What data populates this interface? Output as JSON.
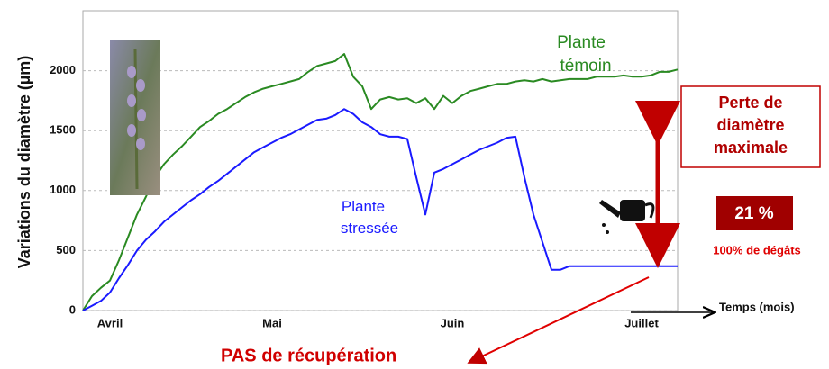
{
  "chart_data": {
    "type": "line",
    "y_label": "Variations du diamètre (µm)",
    "x_label": "Temps (mois)",
    "categories": [
      null,
      null,
      null,
      "Avril",
      null,
      null,
      null,
      null,
      null,
      null,
      null,
      null,
      null,
      null,
      null,
      null,
      null,
      null,
      null,
      null,
      null,
      "Mai",
      null,
      null,
      null,
      null,
      null,
      null,
      null,
      null,
      null,
      null,
      null,
      null,
      null,
      null,
      null,
      null,
      null,
      null,
      null,
      "Juin",
      null,
      null,
      null,
      null,
      null,
      null,
      null,
      null,
      null,
      null,
      null,
      null,
      null,
      null,
      null,
      null,
      null,
      null,
      null,
      null,
      "Juillet",
      null,
      null,
      null,
      null
    ],
    "series": [
      {
        "name": [
          "Plante",
          "témoin"
        ],
        "color": "#2a8a22",
        "values": [
          0,
          120,
          190,
          250,
          420,
          610,
          800,
          950,
          1110,
          1220,
          1300,
          1370,
          1450,
          1530,
          1580,
          1640,
          1680,
          1730,
          1780,
          1820,
          1850,
          1870,
          1890,
          1910,
          1930,
          1990,
          2040,
          2060,
          2080,
          2140,
          1950,
          1870,
          1680,
          1760,
          1780,
          1760,
          1770,
          1730,
          1770,
          1680,
          1790,
          1730,
          1790,
          1830,
          1850,
          1870,
          1890,
          1890,
          1910,
          1920,
          1910,
          1930,
          1910,
          1920,
          1930,
          1930,
          1930,
          1950,
          1950,
          1950,
          1960,
          1950,
          1950,
          1960,
          1990,
          1990,
          2010
        ]
      },
      {
        "name": [
          "Plante",
          "stressée"
        ],
        "color": "#1a1aff",
        "values": [
          0,
          40,
          80,
          150,
          270,
          380,
          500,
          590,
          660,
          740,
          800,
          860,
          920,
          970,
          1030,
          1080,
          1140,
          1200,
          1260,
          1320,
          1360,
          1400,
          1440,
          1470,
          1510,
          1550,
          1590,
          1600,
          1630,
          1680,
          1640,
          1570,
          1530,
          1470,
          1450,
          1450,
          1430,
          1110,
          800,
          1150,
          1180,
          1220,
          1260,
          1300,
          1340,
          1370,
          1400,
          1440,
          1450,
          1110,
          800,
          570,
          340,
          340,
          370,
          370,
          370,
          370,
          370,
          370,
          370,
          370,
          370,
          370,
          370,
          370,
          370
        ]
      }
    ],
    "ylim": [
      0,
      2500
    ],
    "yticks": [
      0,
      500,
      1000,
      1500,
      2000
    ],
    "grid": true,
    "loss_label": [
      "Perte de",
      "diamètre",
      "maximale"
    ],
    "loss_percent": "21 %",
    "damage_label": "100% de dégâts",
    "recovery_label": "PAS de  récupération"
  }
}
